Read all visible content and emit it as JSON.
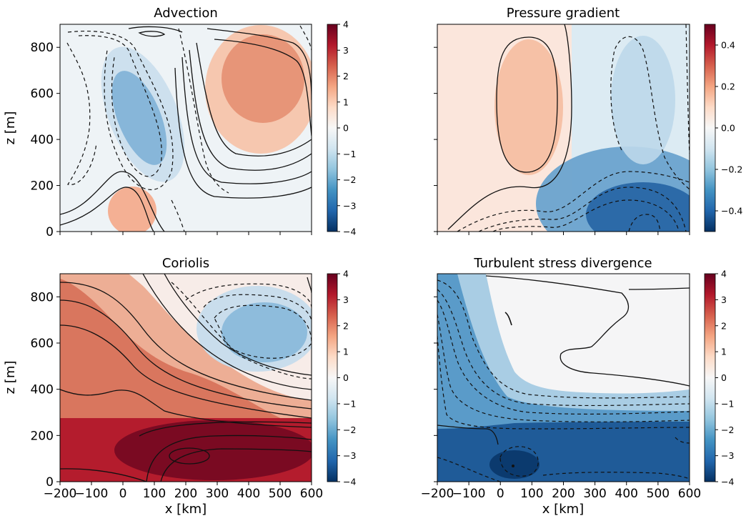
{
  "chart_data": [
    {
      "type": "heatmap",
      "title": "Advection",
      "xlabel": "",
      "ylabel": "z [m]",
      "xlim": [
        -200,
        600
      ],
      "ylim": [
        0,
        900
      ],
      "yticks": [
        0,
        200,
        400,
        600,
        800
      ],
      "xticks": [],
      "colorbar": {
        "range": [
          -4,
          4
        ],
        "ticks": [
          "4",
          "3",
          "2",
          "1",
          "0",
          "−1",
          "−2",
          "−3",
          "−4"
        ],
        "colormap": "RdBu_r"
      },
      "features": [
        {
          "sign": "negative",
          "x": 60,
          "z": 480,
          "peak": -2.2
        },
        {
          "sign": "positive",
          "x": 420,
          "z": 640,
          "peak": 2.4
        },
        {
          "sign": "positive",
          "x": 60,
          "z": 60,
          "peak": 1.6
        }
      ]
    },
    {
      "type": "heatmap",
      "title": "Pressure gradient",
      "xlabel": "",
      "ylabel": "",
      "xlim": [
        -200,
        600
      ],
      "ylim": [
        0,
        900
      ],
      "yticks": [
        0,
        200,
        400,
        600,
        800
      ],
      "xticks": [],
      "colorbar": {
        "range": [
          -0.5,
          0.5
        ],
        "ticks": [
          "0.4",
          "0.2",
          "0.0",
          "−0.2",
          "−0.4"
        ],
        "colormap": "RdBu_r"
      },
      "features": [
        {
          "sign": "positive",
          "x": 60,
          "z": 560,
          "peak": 0.16
        },
        {
          "sign": "negative",
          "x": 410,
          "z": 80,
          "peak": -0.5
        },
        {
          "sign": "negative",
          "x": 400,
          "z": 650,
          "peak": -0.12
        }
      ]
    },
    {
      "type": "heatmap",
      "title": "Coriolis",
      "xlabel": "x [km]",
      "ylabel": "z [m]",
      "xlim": [
        -200,
        600
      ],
      "ylim": [
        0,
        900
      ],
      "yticks": [
        0,
        200,
        400,
        600,
        800
      ],
      "xticks": [
        "−200",
        "−100",
        "0",
        "100",
        "200",
        "300",
        "400",
        "500",
        "600"
      ],
      "colorbar": {
        "range": [
          -4,
          4
        ],
        "ticks": [
          "4",
          "3",
          "2",
          "1",
          "0",
          "−1",
          "−2",
          "−3",
          "−4"
        ],
        "colormap": "RdBu_r"
      },
      "features": [
        {
          "sign": "positive",
          "x": 250,
          "z": 130,
          "peak": 4.2
        },
        {
          "sign": "positive",
          "x": -150,
          "z": 500,
          "peak": 2.6
        },
        {
          "sign": "negative",
          "x": 380,
          "z": 650,
          "peak": -1.8
        }
      ]
    },
    {
      "type": "heatmap",
      "title": "Turbulent stress divergence",
      "xlabel": "x [km]",
      "ylabel": "",
      "xlim": [
        -200,
        600
      ],
      "ylim": [
        0,
        900
      ],
      "yticks": [
        0,
        200,
        400,
        600,
        800
      ],
      "xticks": [
        "−200",
        "−100",
        "0",
        "100",
        "200",
        "300",
        "400",
        "500",
        "600"
      ],
      "colorbar": {
        "range": [
          -4,
          4
        ],
        "ticks": [
          "4",
          "3",
          "2",
          "1",
          "0",
          "−1",
          "−2",
          "−3",
          "−4"
        ],
        "colormap": "RdBu_r"
      },
      "features": [
        {
          "sign": "negative",
          "x": 150,
          "z": 120,
          "peak": -4.0
        },
        {
          "sign": "negative",
          "x": -170,
          "z": 500,
          "peak": -2.2
        },
        {
          "sign": "near-zero",
          "x": 380,
          "z": 700,
          "peak": 0.05
        }
      ]
    }
  ],
  "yticklabels": [
    "0",
    "200",
    "400",
    "600",
    "800"
  ]
}
